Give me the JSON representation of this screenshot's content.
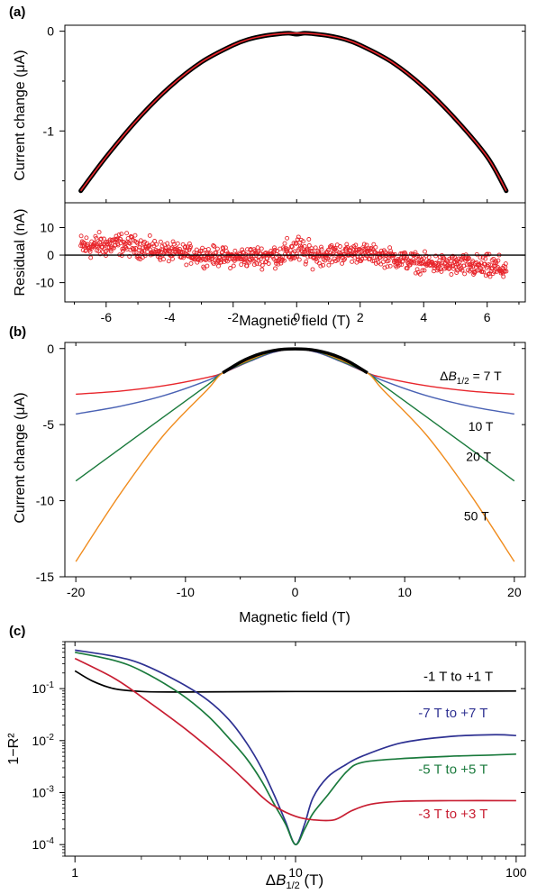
{
  "chart_data": [
    {
      "panel_label": "(a)",
      "type": "scatter",
      "ylabel": "Current change (μA)",
      "xlim": [
        -7.3,
        7.2
      ],
      "ylim": [
        -1.72,
        0.06
      ],
      "xticks": [
        -6,
        -4,
        -2,
        0,
        2,
        4,
        6
      ],
      "yticks": [
        0,
        -1
      ],
      "ytick_labels": [
        "0",
        "-1"
      ],
      "series": [
        {
          "role": "measured",
          "color": "#000000",
          "x": [
            -6.8,
            -6,
            -5,
            -4,
            -3,
            -2,
            -1.5,
            -1,
            -0.5,
            -0.25,
            0,
            0.25,
            0.5,
            1,
            1.5,
            2,
            3,
            4,
            5,
            6,
            6.6
          ],
          "y": [
            -1.6,
            -1.26,
            -0.88,
            -0.56,
            -0.31,
            -0.14,
            -0.08,
            -0.045,
            -0.025,
            -0.02,
            -0.03,
            -0.02,
            -0.025,
            -0.045,
            -0.08,
            -0.14,
            -0.31,
            -0.56,
            -0.88,
            -1.26,
            -1.6
          ]
        },
        {
          "role": "fit",
          "color": "#e8262c",
          "x": [
            -6.8,
            -6,
            -5,
            -4,
            -3,
            -2,
            -1.5,
            -1,
            -0.5,
            0,
            0.5,
            1,
            1.5,
            2,
            3,
            4,
            5,
            6,
            6.6
          ],
          "y": [
            -1.6,
            -1.26,
            -0.88,
            -0.56,
            -0.31,
            -0.14,
            -0.08,
            -0.045,
            -0.025,
            -0.02,
            -0.025,
            -0.045,
            -0.08,
            -0.14,
            -0.31,
            -0.56,
            -0.88,
            -1.26,
            -1.6
          ]
        }
      ]
    },
    {
      "panel_label": "",
      "type": "scatter",
      "ylabel": "Residual (nA)",
      "xlabel": "Magnetic field (T)",
      "xlim": [
        -7.3,
        7.2
      ],
      "ylim": [
        -17,
        19
      ],
      "xticks": [
        -6,
        -4,
        -2,
        0,
        2,
        4,
        6
      ],
      "yticks": [
        10,
        0,
        -10
      ],
      "zero_line": 0,
      "residual_color": "#e8262c",
      "residual_band": {
        "x": [
          -6.8,
          -5.5,
          -4,
          -2,
          -0.5,
          0,
          0.5,
          2,
          4,
          5.5,
          6.6
        ],
        "center": [
          3,
          4,
          1,
          -1,
          0,
          2,
          0,
          1,
          -3,
          -4,
          -5
        ],
        "spread": [
          7,
          6,
          5,
          5,
          6,
          8,
          6,
          5,
          5,
          6,
          7
        ]
      }
    },
    {
      "panel_label": "(b)",
      "type": "line",
      "ylabel": "Current change (μA)",
      "xlabel": "Magnetic field (T)",
      "xlim": [
        -21,
        21
      ],
      "ylim": [
        -15,
        0.4
      ],
      "xticks": [
        -20,
        -10,
        0,
        10,
        20
      ],
      "yticks": [
        0,
        -5,
        -10,
        -15
      ],
      "series": [
        {
          "name": "ΔB1/2 = 7 T",
          "color": "#e8262c",
          "x": [
            -20,
            -16,
            -12,
            -8,
            -6.6,
            -4,
            -2,
            0,
            2,
            4,
            6.6,
            8,
            12,
            16,
            20
          ],
          "y": [
            -3.0,
            -2.8,
            -2.45,
            -1.9,
            -1.6,
            -0.8,
            -0.25,
            0,
            -0.25,
            -0.8,
            -1.6,
            -1.9,
            -2.45,
            -2.8,
            -3.0
          ]
        },
        {
          "name": "10 T",
          "color": "#4a62b4",
          "x": [
            -20,
            -16,
            -12,
            -8,
            -6.6,
            -4,
            -2,
            0,
            2,
            4,
            6.6,
            8,
            12,
            16,
            20
          ],
          "y": [
            -4.3,
            -3.8,
            -3.1,
            -2.1,
            -1.6,
            -0.8,
            -0.25,
            0,
            -0.25,
            -0.8,
            -1.6,
            -2.1,
            -3.1,
            -3.8,
            -4.3
          ]
        },
        {
          "name": "20 T",
          "color": "#1a7a3c",
          "x": [
            -20,
            -16,
            -12,
            -8,
            -6.6,
            -4,
            -2,
            0,
            2,
            4,
            6.6,
            8,
            12,
            16,
            20
          ],
          "y": [
            -8.7,
            -6.6,
            -4.5,
            -2.4,
            -1.6,
            -0.75,
            -0.2,
            0,
            -0.2,
            -0.75,
            -1.6,
            -2.4,
            -4.5,
            -6.6,
            -8.7
          ]
        },
        {
          "name": "50 T",
          "color": "#f08c1e",
          "x": [
            -20,
            -16,
            -12,
            -8,
            -6.6,
            -4,
            -2,
            0,
            2,
            4,
            6.6,
            8,
            12,
            16,
            20
          ],
          "y": [
            -14.0,
            -9.6,
            -5.7,
            -2.7,
            -1.6,
            -0.7,
            -0.18,
            0,
            -0.18,
            -0.7,
            -1.6,
            -2.7,
            -5.7,
            -9.6,
            -14.0
          ]
        },
        {
          "name": "",
          "color": "#000000",
          "x": [
            -6.6,
            -5,
            -4,
            -3,
            -2,
            -1,
            0,
            1,
            2,
            3,
            4,
            5,
            6.6
          ],
          "y": [
            -1.6,
            -0.9,
            -0.56,
            -0.31,
            -0.14,
            -0.045,
            -0.02,
            -0.045,
            -0.14,
            -0.31,
            -0.56,
            -0.9,
            -1.6
          ]
        }
      ],
      "annotations": [
        {
          "prefix": "Δ",
          "italic": "B",
          "sub": "1/2",
          "suffix": " = 7 T",
          "x": 13.2,
          "y": -2.1
        },
        {
          "text": "10 T",
          "x": 15.8,
          "y": -5.4
        },
        {
          "text": "20 T",
          "x": 15.6,
          "y": -7.4
        },
        {
          "text": "50 T",
          "x": 15.4,
          "y": -11.3
        }
      ]
    },
    {
      "panel_label": "(c)",
      "type": "line",
      "ylabel": "1−R²",
      "xlabel": {
        "prefix": "Δ",
        "italic": "B",
        "sub": "1/2",
        "suffix": " (T)"
      },
      "xscale": "log",
      "yscale": "log",
      "xlim": [
        0.9,
        110
      ],
      "ylim": [
        6e-05,
        0.8
      ],
      "xticks": [
        1,
        10,
        100
      ],
      "yticks": [
        0.1,
        0.01,
        0.001,
        0.0001
      ],
      "ytick_labels": [
        {
          "base": "10",
          "exp": "-1"
        },
        {
          "base": "10",
          "exp": "-2"
        },
        {
          "base": "10",
          "exp": "-3"
        },
        {
          "base": "10",
          "exp": "-4"
        }
      ],
      "series": [
        {
          "name": "-1 T to +1 T",
          "color": "#000000",
          "x": [
            1,
            1.2,
            1.5,
            2,
            3,
            5,
            10,
            20,
            50,
            100
          ],
          "y": [
            0.22,
            0.14,
            0.1,
            0.088,
            0.086,
            0.087,
            0.088,
            0.088,
            0.089,
            0.09
          ]
        },
        {
          "name": "-7 T to +7 T",
          "color": "#2e3192",
          "x": [
            1,
            1.5,
            2,
            3,
            4,
            5,
            6,
            7,
            8,
            9,
            10,
            11,
            12,
            14,
            17,
            20,
            30,
            50,
            80,
            100
          ],
          "y": [
            0.55,
            0.42,
            0.3,
            0.13,
            0.06,
            0.025,
            0.009,
            0.003,
            0.0009,
            0.00028,
            0.0001,
            0.00025,
            0.0008,
            0.002,
            0.0035,
            0.005,
            0.009,
            0.012,
            0.013,
            0.0125
          ]
        },
        {
          "name": "-5 T to +5 T",
          "color": "#1a7a3c",
          "x": [
            1,
            1.5,
            2,
            3,
            4,
            5,
            6,
            7,
            8,
            9,
            10,
            11,
            12,
            14,
            17,
            20,
            30,
            50,
            80,
            100
          ],
          "y": [
            0.5,
            0.35,
            0.22,
            0.08,
            0.03,
            0.011,
            0.0045,
            0.0017,
            0.0006,
            0.00025,
            0.0001,
            0.0002,
            0.0004,
            0.0009,
            0.0025,
            0.0038,
            0.0045,
            0.005,
            0.0053,
            0.0055
          ]
        },
        {
          "name": "-3 T to +3 T",
          "color": "#c81e32",
          "x": [
            1,
            1.5,
            2,
            3,
            4,
            5,
            6,
            7,
            8,
            10,
            12,
            15,
            18,
            22,
            30,
            50,
            100
          ],
          "y": [
            0.38,
            0.16,
            0.07,
            0.02,
            0.0075,
            0.0033,
            0.0016,
            0.00085,
            0.00055,
            0.00035,
            0.0003,
            0.0003,
            0.00045,
            0.0006,
            0.00068,
            0.0007,
            0.0007
          ]
        }
      ],
      "annotations": [
        {
          "text": "-1 T to +1 T",
          "color": "#000000",
          "x": 38,
          "y": 0.14
        },
        {
          "text": "-7 T to +7 T",
          "color": "#2e3192",
          "x": 36,
          "y": 0.028
        },
        {
          "text": "-5 T to +5 T",
          "color": "#1a7a3c",
          "x": 36,
          "y": 0.0023
        },
        {
          "text": "-3 T to +3 T",
          "color": "#c81e32",
          "x": 36,
          "y": 0.00032
        }
      ]
    }
  ]
}
